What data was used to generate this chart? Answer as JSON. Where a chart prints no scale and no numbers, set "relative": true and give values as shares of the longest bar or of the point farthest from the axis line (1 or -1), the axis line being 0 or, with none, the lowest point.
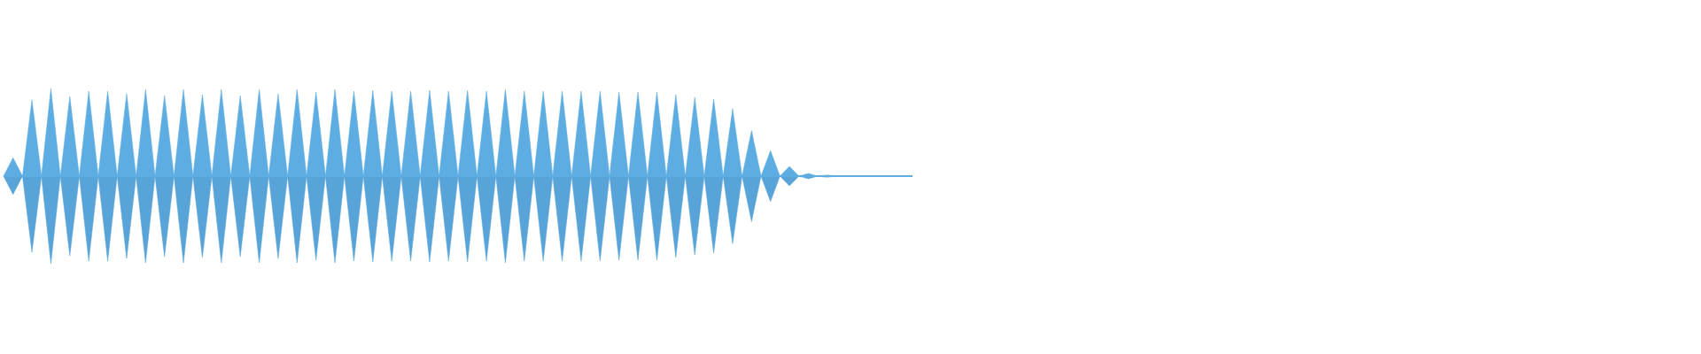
{
  "chart_data": {
    "type": "area",
    "relative": true,
    "categories": [
      null,
      null,
      null,
      null,
      null,
      null,
      null,
      null,
      null,
      null,
      null,
      null,
      null,
      null,
      null,
      null,
      null,
      null,
      null,
      null,
      null,
      null,
      null,
      null,
      null,
      null,
      null,
      null,
      null,
      null,
      null,
      null,
      null,
      null,
      null,
      null,
      null,
      null,
      null,
      null,
      null,
      null,
      null,
      null,
      null,
      null,
      null,
      null,
      null,
      null,
      null,
      null,
      null,
      null,
      null,
      null,
      null,
      null,
      null,
      null,
      null,
      null,
      null,
      null,
      null,
      null,
      null,
      null,
      null,
      null,
      null,
      null,
      null,
      null,
      null,
      null,
      null,
      null,
      null,
      null,
      null,
      null,
      null,
      null,
      null,
      null,
      null,
      null,
      null,
      null,
      null,
      null,
      null,
      null,
      null,
      null,
      null
    ],
    "series": [
      {
        "color": "#5dade2",
        "values": [
          0,
          0.21,
          0,
          0.87,
          0,
          1,
          0,
          0.91,
          0,
          0.97,
          0,
          0.97,
          0,
          0.94,
          0,
          0.99,
          0,
          0.92,
          0,
          0.99,
          0,
          0.93,
          0,
          0.99,
          0,
          0.92,
          0,
          0.99,
          0,
          0.94,
          0,
          0.99,
          0,
          0.96,
          0,
          0.99,
          0,
          0.97,
          0,
          0.98,
          0,
          0.97,
          0,
          0.97,
          0,
          0.98,
          0,
          0.97,
          0,
          0.98,
          0,
          0.97,
          0,
          0.99,
          0,
          0.97,
          0,
          0.97,
          0,
          0.97,
          0,
          0.97,
          0,
          0.97,
          0,
          0.96,
          0,
          0.96,
          0,
          0.96,
          0,
          0.93,
          0,
          0.9,
          0,
          0.88,
          0,
          0.77,
          0,
          0.52,
          0,
          0.29,
          0,
          0.11,
          0,
          0.03,
          0,
          0.013,
          0,
          0,
          0,
          0,
          0,
          0,
          0,
          0,
          0
        ]
      },
      {
        "color": "#58a4d8",
        "values": [
          0,
          -0.21,
          0,
          -0.87,
          0,
          -1,
          0,
          -0.91,
          0,
          -0.97,
          0,
          -0.97,
          0,
          -0.94,
          0,
          -0.99,
          0,
          -0.92,
          0,
          -0.99,
          0,
          -0.93,
          0,
          -0.99,
          0,
          -0.92,
          0,
          -0.99,
          0,
          -0.94,
          0,
          -0.99,
          0,
          -0.96,
          0,
          -0.99,
          0,
          -0.97,
          0,
          -0.98,
          0,
          -0.97,
          0,
          -0.97,
          0,
          -0.98,
          0,
          -0.97,
          0,
          -0.98,
          0,
          -0.97,
          0,
          -0.99,
          0,
          -0.97,
          0,
          -0.97,
          0,
          -0.97,
          0,
          -0.97,
          0,
          -0.97,
          0,
          -0.96,
          0,
          -0.96,
          0,
          -0.96,
          0,
          -0.93,
          0,
          -0.9,
          0,
          -0.88,
          0,
          -0.77,
          0,
          -0.52,
          0,
          -0.29,
          0,
          -0.11,
          0,
          -0.03,
          0,
          -0.013,
          0,
          0,
          0,
          0,
          0,
          0,
          0,
          0,
          0
        ]
      }
    ]
  }
}
